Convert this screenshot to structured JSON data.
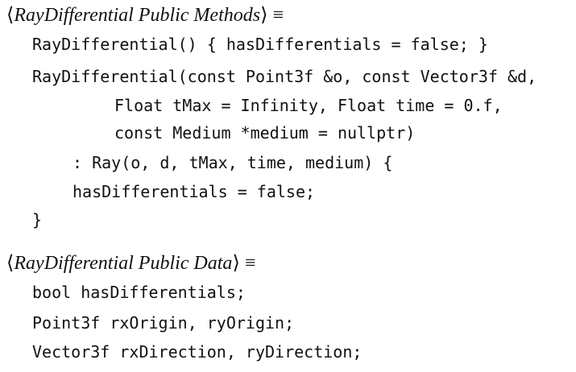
{
  "sections": [
    {
      "title": {
        "open": "⟨",
        "name": "RayDifferential Public Methods",
        "close": "⟩",
        "equiv": "≡"
      },
      "lines": [
        "RayDifferential() { hasDifferentials = false; }",
        "RayDifferential(const Point3f &o, const Vector3f &d,",
        "Float tMax = Infinity, Float time = 0.f,",
        "const Medium *medium = nullptr)",
        ": Ray(o, d, tMax, time, medium) {",
        "hasDifferentials = false;",
        "}"
      ]
    },
    {
      "title": {
        "open": "⟨",
        "name": "RayDifferential Public Data",
        "close": "⟩",
        "equiv": "≡"
      },
      "lines": [
        "bool hasDifferentials;",
        "Point3f rxOrigin, ryOrigin;",
        "Vector3f rxDirection, ryDirection;"
      ]
    }
  ]
}
